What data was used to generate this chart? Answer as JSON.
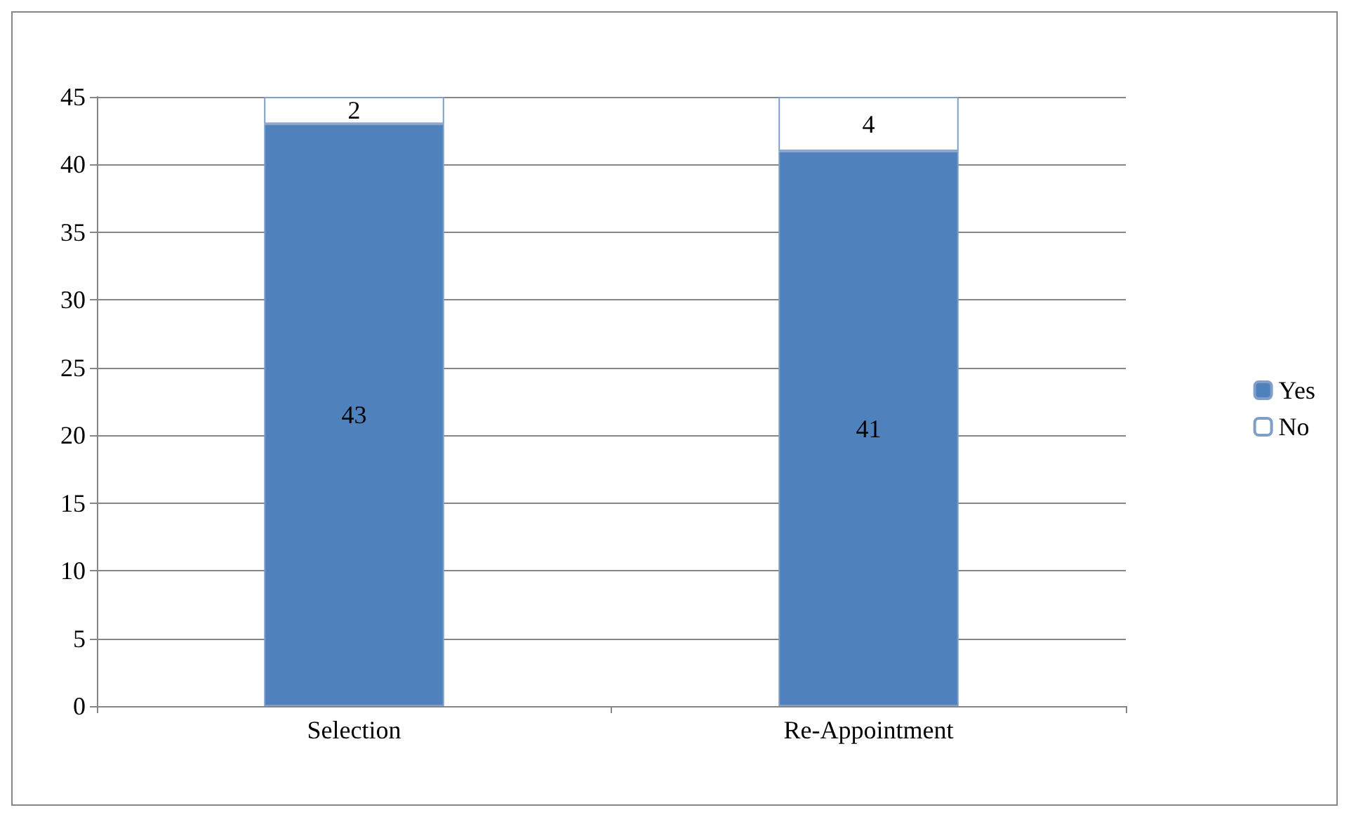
{
  "chart_data": {
    "type": "bar",
    "stacked": true,
    "categories": [
      "Selection",
      "Re-Appointment"
    ],
    "series": [
      {
        "name": "Yes",
        "color": "#4f81bd",
        "values": [
          43,
          41
        ]
      },
      {
        "name": "No",
        "color": "#ffffff",
        "values": [
          2,
          4
        ]
      }
    ],
    "ylim": [
      0,
      45
    ],
    "yticks": [
      0,
      5,
      10,
      15,
      20,
      25,
      30,
      35,
      40,
      45
    ],
    "grid": "y",
    "legend": "right",
    "data_labels": true
  }
}
